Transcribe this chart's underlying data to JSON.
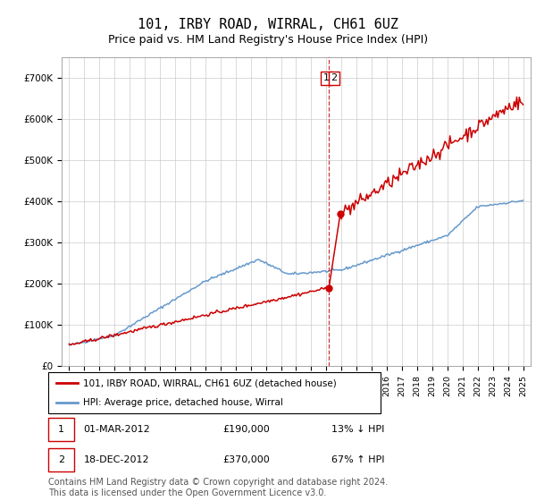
{
  "title": "101, IRBY ROAD, WIRRAL, CH61 6UZ",
  "subtitle": "Price paid vs. HM Land Registry's House Price Index (HPI)",
  "legend_line1": "101, IRBY ROAD, WIRRAL, CH61 6UZ (detached house)",
  "legend_line2": "HPI: Average price, detached house, Wirral",
  "transaction1_date": "01-MAR-2012",
  "transaction1_price": "£190,000",
  "transaction1_hpi": "13% ↓ HPI",
  "transaction2_date": "18-DEC-2012",
  "transaction2_price": "£370,000",
  "transaction2_hpi": "67% ↑ HPI",
  "hpi_color": "#6699cc",
  "price_color": "#cc0000",
  "ylim": [
    0,
    750000
  ],
  "ylabel_ticks": [
    0,
    100000,
    200000,
    300000,
    400000,
    500000,
    600000,
    700000
  ],
  "footer": "Contains HM Land Registry data © Crown copyright and database right 2024.\nThis data is licensed under the Open Government Licence v3.0.",
  "footnote_fontsize": 7.0,
  "title_fontsize": 11,
  "subtitle_fontsize": 9.0
}
